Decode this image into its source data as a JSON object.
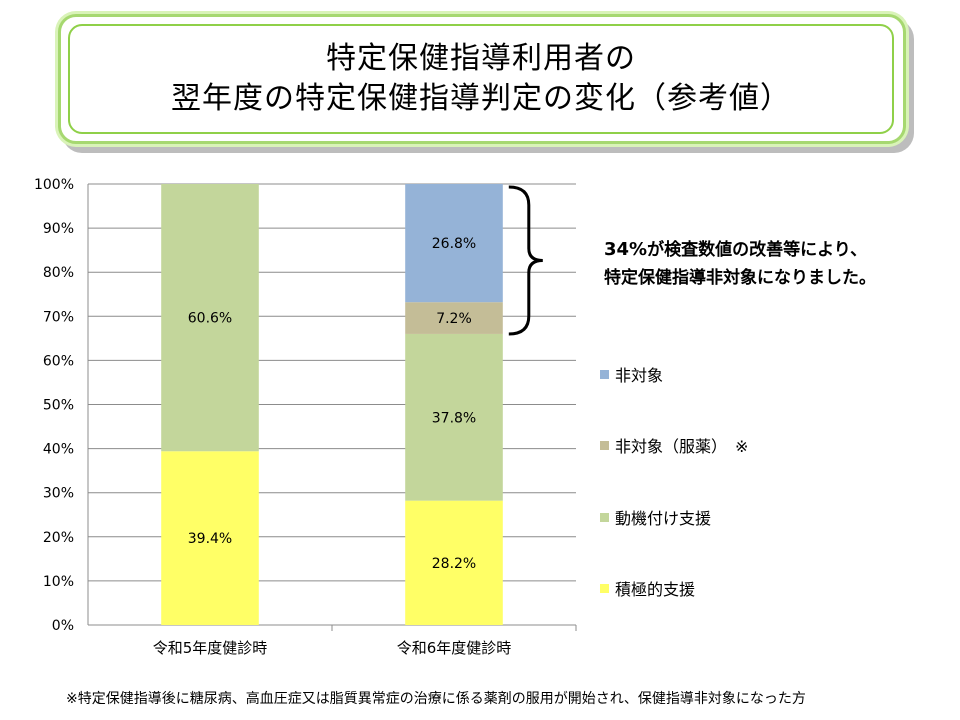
{
  "title": {
    "line1": "特定保健指導利用者の",
    "line2": "翌年度の特定保健指導判定の変化（参考値）"
  },
  "annotation": {
    "percent": "34%",
    "text1": "が検査数値の改善等により、",
    "text2": "特定保健指導非対象になりました。"
  },
  "legend": [
    {
      "label": "非対象",
      "color": "#95b3d7"
    },
    {
      "label": "非対象（服薬）　※",
      "color": "#c4bd97"
    },
    {
      "label": "動機付け支援",
      "color": "#c3d69b"
    },
    {
      "label": "積極的支援",
      "color": "#ffff66"
    }
  ],
  "footnote": "※特定保健指導後に糖尿病、高血圧症又は脂質異常症の治療に係る薬剤の服用が開始され、保健指導非対象になった方",
  "chart_data": {
    "type": "bar",
    "stacked": true,
    "categories": [
      "令和5年度健診時",
      "令和6年度健診時"
    ],
    "series": [
      {
        "name": "積極的支援",
        "color": "#ffff66",
        "values": [
          39.4,
          28.2
        ],
        "labels": [
          "39.4%",
          "28.2%"
        ]
      },
      {
        "name": "動機付け支援",
        "color": "#c3d69b",
        "values": [
          60.6,
          37.8
        ],
        "labels": [
          "60.6%",
          "37.8%"
        ]
      },
      {
        "name": "非対象（服薬）　※",
        "color": "#c4bd97",
        "values": [
          0,
          7.2
        ],
        "labels": [
          "",
          "7.2%"
        ]
      },
      {
        "name": "非対象",
        "color": "#95b3d7",
        "values": [
          0,
          26.8
        ],
        "labels": [
          "",
          "26.8%"
        ]
      }
    ],
    "ylim": [
      0,
      100
    ],
    "yticks": [
      "0%",
      "10%",
      "20%",
      "30%",
      "40%",
      "50%",
      "60%",
      "70%",
      "80%",
      "90%",
      "100%"
    ],
    "grid": true,
    "legend": "right"
  }
}
